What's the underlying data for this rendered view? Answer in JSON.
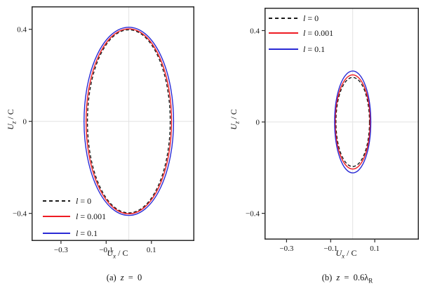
{
  "figure": {
    "background": "#ffffff",
    "frame_color": "#2a2a2a",
    "grid_color": "#e3e3e3",
    "text_color": "#161616"
  },
  "chart_data": [
    {
      "type": "line",
      "panel": "a",
      "caption_text": "(a) z = 0",
      "caption": {
        "prefix": "(a) ",
        "var": "z",
        "rest": " = 0",
        "sub": ""
      },
      "xlabel": {
        "base": "U",
        "sub": "x",
        "rest": " / C"
      },
      "ylabel": {
        "base": "U",
        "sub": "z",
        "rest": " / C"
      },
      "xlim": [
        -0.43,
        0.29
      ],
      "ylim": [
        -0.52,
        0.5
      ],
      "xticks": [
        -0.3,
        -0.1,
        0.1
      ],
      "xtick_labels": [
        "−0.3",
        "−0.1",
        "0.1"
      ],
      "yticks": [
        0.4,
        0,
        -0.4
      ],
      "ytick_labels": [
        "0.4",
        "0",
        "−0.4"
      ],
      "grid": "zero-axes-only",
      "legend_position": "bottom-left",
      "series": [
        {
          "name": "l = 0",
          "var": "l",
          "rest": " = 0",
          "style": "dashed",
          "color": "#1a1a1a",
          "shape": "ellipse",
          "cx": 0,
          "cz": 0,
          "rx": 0.183,
          "rz": 0.398
        },
        {
          "name": "l = 0.001",
          "var": "l",
          "rest": " = 0.001",
          "style": "solid",
          "color": "#ee1c23",
          "shape": "ellipse",
          "cx": 0,
          "cz": 0,
          "rx": 0.189,
          "rz": 0.402
        },
        {
          "name": "l = 0.1",
          "var": "l",
          "rest": " = 0.1",
          "style": "solid",
          "color": "#2a2ad5",
          "shape": "ellipse",
          "cx": 0,
          "cz": 0,
          "rx": 0.198,
          "rz": 0.409
        }
      ]
    },
    {
      "type": "line",
      "panel": "b",
      "caption_text": "(b) z = 0.6λR",
      "caption": {
        "prefix": "(b) ",
        "var": "z",
        "rest": " = 0.6λ",
        "sub": "R"
      },
      "xlabel": {
        "base": "U",
        "sub": "x",
        "rest": " / C"
      },
      "ylabel": {
        "base": "U",
        "sub": "z",
        "rest": " / C"
      },
      "xlim": [
        -0.4,
        0.3
      ],
      "ylim": [
        -0.515,
        0.5
      ],
      "xticks": [
        -0.3,
        -0.1,
        0.1
      ],
      "xtick_labels": [
        "−0.3",
        "−0.1",
        "0.1"
      ],
      "yticks": [
        0.4,
        0,
        -0.4
      ],
      "ytick_labels": [
        "0.4",
        "0",
        "−0.4"
      ],
      "grid": "zero-axes-only",
      "legend_position": "top-left",
      "series": [
        {
          "name": "l = 0",
          "var": "l",
          "rest": " = 0",
          "style": "dashed",
          "color": "#1a1a1a",
          "shape": "ellipse",
          "cx": 0,
          "cz": 0,
          "rx": 0.076,
          "rz": 0.195
        },
        {
          "name": "l = 0.001",
          "var": "l",
          "rest": " = 0.001",
          "style": "solid",
          "color": "#ee1c23",
          "shape": "ellipse",
          "cx": 0,
          "cz": 0,
          "rx": 0.079,
          "rz": 0.206
        },
        {
          "name": "l = 0.1",
          "var": "l",
          "rest": " = 0.1",
          "style": "solid",
          "color": "#2a2ad5",
          "shape": "ellipse",
          "cx": 0,
          "cz": 0,
          "rx": 0.082,
          "rz": 0.223
        }
      ]
    }
  ]
}
